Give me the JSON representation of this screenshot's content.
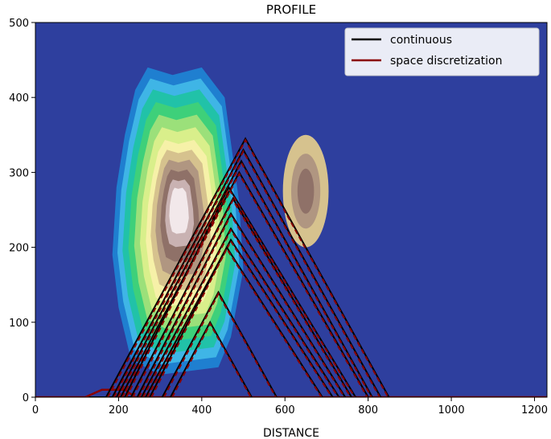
{
  "chart_data": {
    "type": "line",
    "title": "PROFILE",
    "xlabel": "DISTANCE",
    "ylabel": "",
    "xlim": [
      0,
      1230
    ],
    "ylim": [
      0,
      500
    ],
    "xticks": [
      0,
      200,
      400,
      600,
      800,
      1000,
      1200
    ],
    "yticks": [
      0,
      100,
      200,
      300,
      400,
      500
    ],
    "background_color": "#2e3f9e",
    "grid": false,
    "legend_position": "top-right",
    "legend": [
      {
        "label": "continuous",
        "color": "#000000"
      },
      {
        "label": "space discretization",
        "color": "#8b0000"
      }
    ],
    "contour_colors": [
      "#2e3f9e",
      "#1f7fd0",
      "#3fb5e6",
      "#21c2a8",
      "#3ed07a",
      "#9be07a",
      "#d9ef8b",
      "#f6f1a8",
      "#d6c28e",
      "#b09681",
      "#8f7168",
      "#c9b2b2",
      "#f2e8ea"
    ],
    "baseline": {
      "x_start": 0,
      "x_end": 1230,
      "y": 0
    },
    "ground": [
      [
        0,
        0
      ],
      [
        120,
        0
      ],
      [
        160,
        10
      ],
      [
        215,
        10
      ],
      [
        240,
        0
      ],
      [
        1230,
        0
      ]
    ],
    "series": [
      {
        "peak_x": 505,
        "peak_y": 345,
        "left_x": 170,
        "right_x": 850
      },
      {
        "peak_x": 500,
        "peak_y": 330,
        "left_x": 185,
        "right_x": 830
      },
      {
        "peak_x": 495,
        "peak_y": 315,
        "left_x": 195,
        "right_x": 810
      },
      {
        "peak_x": 490,
        "peak_y": 300,
        "left_x": 205,
        "right_x": 800
      },
      {
        "peak_x": 465,
        "peak_y": 280,
        "left_x": 215,
        "right_x": 770
      },
      {
        "peak_x": 475,
        "peak_y": 265,
        "left_x": 230,
        "right_x": 760
      },
      {
        "peak_x": 470,
        "peak_y": 245,
        "left_x": 245,
        "right_x": 745
      },
      {
        "peak_x": 470,
        "peak_y": 225,
        "left_x": 255,
        "right_x": 730
      },
      {
        "peak_x": 470,
        "peak_y": 210,
        "left_x": 265,
        "right_x": 715
      },
      {
        "peak_x": 460,
        "peak_y": 200,
        "left_x": 275,
        "right_x": 690
      },
      {
        "peak_x": 440,
        "peak_y": 140,
        "left_x": 305,
        "right_x": 580
      },
      {
        "peak_x": 420,
        "peak_y": 100,
        "left_x": 325,
        "right_x": 520
      }
    ]
  }
}
